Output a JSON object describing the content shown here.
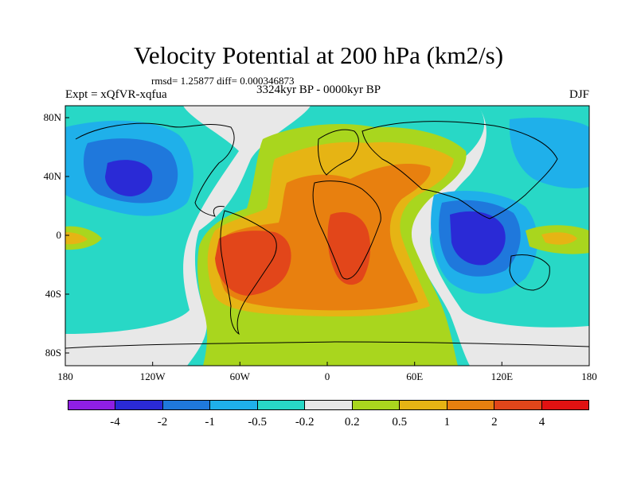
{
  "title": "Velocity Potential at 200 hPa (km2/s)",
  "stats": "rmsd= 1.25877 diff= 0.000346873",
  "experiment": "Expt = xQfVR-xqfua",
  "period": "3324kyr BP - 0000kyr BP",
  "season": "DJF",
  "lon_ticks": [
    "180",
    "120W",
    "60W",
    "0",
    "60E",
    "120E",
    "180"
  ],
  "lat_ticks": [
    "80N",
    "40N",
    "0",
    "40S",
    "80S"
  ],
  "colorbar": {
    "colors": [
      "#8f1fe3",
      "#2a2ad6",
      "#1f78dc",
      "#1fb0ea",
      "#28d8c6",
      "#e8e8e8",
      "#a9d61e",
      "#e6b414",
      "#e8800f",
      "#e2461a",
      "#e01212"
    ],
    "labels": [
      "-4",
      "-2",
      "-1",
      "-0.5",
      "-0.2",
      "0.2",
      "0.5",
      "1",
      "2",
      "4"
    ]
  },
  "palette": {
    "dark_blue": "#2a2ad6",
    "blue": "#1f78dc",
    "light_blue": "#1fb0ea",
    "cyan": "#28d8c6",
    "gray": "#e8e8e8",
    "yellow_green": "#a9d61e",
    "gold": "#e6b414",
    "orange": "#e8800f",
    "red_orange": "#e2461a"
  }
}
